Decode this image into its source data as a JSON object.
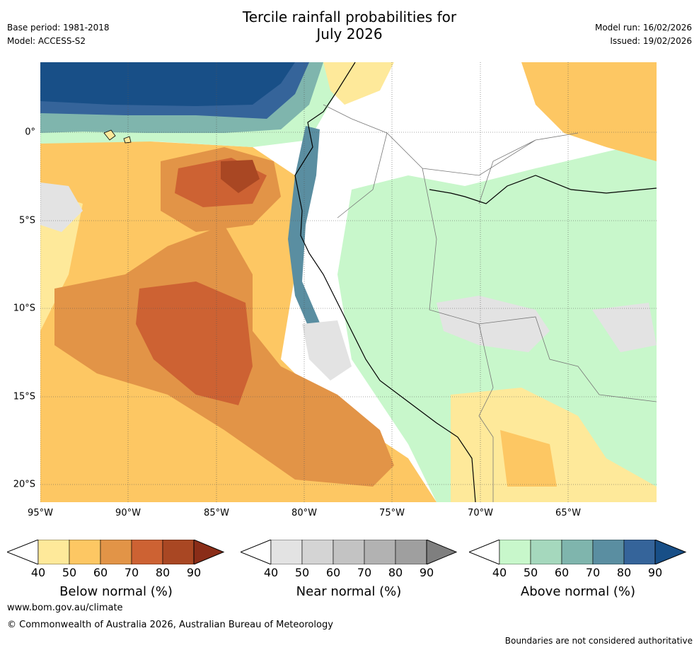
{
  "title": {
    "line1": "Tercile rainfall probabilities for",
    "line2": "July 2026"
  },
  "meta_left": {
    "base_period": "Base period: 1981-2018",
    "model": "Model: ACCESS-S2"
  },
  "meta_right": {
    "model_run": "Model run: 16/02/2026",
    "issued": "Issued: 19/02/2026"
  },
  "axes": {
    "lat_labels": [
      "0°",
      "5°S",
      "10°S",
      "15°S",
      "20°S"
    ],
    "lon_labels": [
      "95°W",
      "90°W",
      "85°W",
      "80°W",
      "75°W",
      "70°W",
      "65°W"
    ]
  },
  "colorbars": [
    {
      "name": "below",
      "label": "Below normal (%)",
      "ticks": [
        "40",
        "50",
        "60",
        "70",
        "80",
        "90"
      ],
      "colors": [
        "#fee99a",
        "#fdc763",
        "#e29447",
        "#cd6233",
        "#a94723",
        "#8a2d18"
      ]
    },
    {
      "name": "near",
      "label": "Near normal (%)",
      "ticks": [
        "40",
        "50",
        "60",
        "70",
        "80",
        "90"
      ],
      "colors": [
        "#e3e3e3",
        "#d4d4d4",
        "#c3c3c3",
        "#b2b2b2",
        "#9f9f9f",
        "#7f7f7f"
      ]
    },
    {
      "name": "above",
      "label": "Above normal (%)",
      "ticks": [
        "40",
        "50",
        "60",
        "70",
        "80",
        "90"
      ],
      "colors": [
        "#c8f7cb",
        "#a5d8bd",
        "#7fb5ad",
        "#5a8ea1",
        "#35649a",
        "#184f87"
      ]
    }
  ],
  "footer": {
    "url": "www.bom.gov.au/climate",
    "copyright": "© Commonwealth of Australia 2026, Australian Bureau of Meteorology",
    "disclaimer": "Boundaries are not considered authoritative"
  }
}
